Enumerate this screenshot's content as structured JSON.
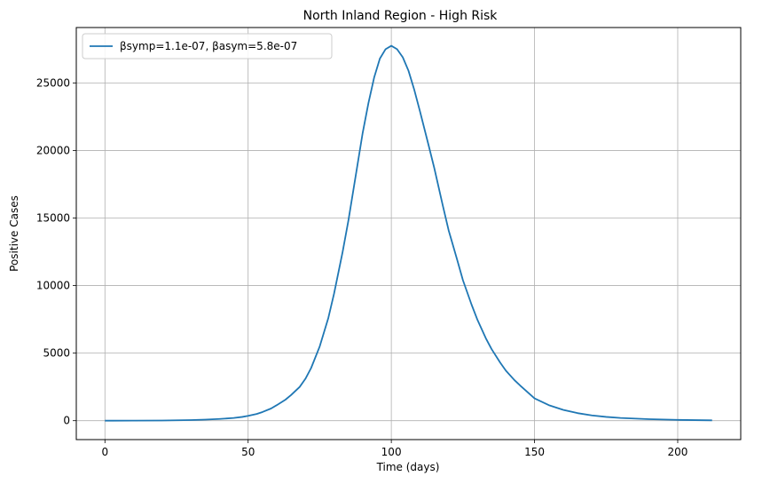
{
  "chart_data": {
    "type": "line",
    "title": "North Inland Region - High Risk",
    "xlabel": "Time (days)",
    "ylabel": "Positive Cases",
    "xlim": [
      -10,
      222
    ],
    "ylim": [
      -1400,
      29100
    ],
    "xticks": [
      0,
      50,
      100,
      150,
      200
    ],
    "yticks": [
      0,
      5000,
      10000,
      15000,
      20000,
      25000
    ],
    "grid": true,
    "legend_position": "top-left",
    "series": [
      {
        "name": "βsymp=1.1e-07, βasym=5.8e-07",
        "color": "#1f77b4",
        "x": [
          0,
          10,
          20,
          30,
          35,
          40,
          45,
          48,
          50,
          53,
          55,
          58,
          60,
          63,
          65,
          68,
          70,
          72,
          75,
          78,
          80,
          83,
          85,
          88,
          90,
          92,
          94,
          96,
          98,
          100,
          102,
          104,
          106,
          108,
          110,
          113,
          115,
          118,
          120,
          123,
          125,
          128,
          130,
          133,
          135,
          138,
          140,
          143,
          145,
          150,
          155,
          160,
          165,
          170,
          175,
          180,
          190,
          200,
          212
        ],
        "y": [
          0,
          5,
          15,
          45,
          80,
          130,
          200,
          280,
          360,
          500,
          640,
          900,
          1150,
          1550,
          1900,
          2500,
          3100,
          3900,
          5500,
          7600,
          9400,
          12500,
          14800,
          18700,
          21300,
          23500,
          25400,
          26800,
          27500,
          27750,
          27500,
          26900,
          25900,
          24500,
          22900,
          20400,
          18700,
          15900,
          14100,
          11900,
          10400,
          8600,
          7500,
          6100,
          5300,
          4300,
          3700,
          3000,
          2600,
          1650,
          1150,
          800,
          560,
          390,
          280,
          200,
          110,
          60,
          25
        ]
      }
    ]
  }
}
